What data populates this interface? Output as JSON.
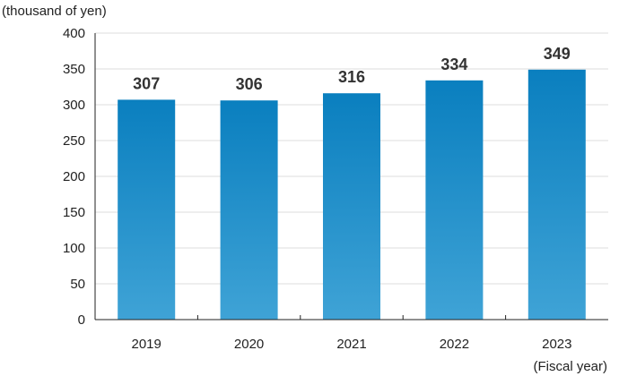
{
  "chart_data": {
    "type": "bar",
    "title": "",
    "ylabel": "(thousand of yen)",
    "xlabel": "(Fiscal year)",
    "categories": [
      "2019",
      "2020",
      "2021",
      "2022",
      "2023"
    ],
    "values": [
      307,
      306,
      316,
      334,
      349
    ],
    "ylim": [
      0,
      400
    ],
    "yticks": [
      "0",
      "50",
      "100",
      "150",
      "200",
      "250",
      "300",
      "350",
      "400"
    ],
    "grid": true,
    "data_labels": true,
    "colors": {
      "bar_top": "#0a7fbf",
      "bar_bottom": "#3fa3d6",
      "grid": "#dddddd",
      "axis": "#222222",
      "label": "#333333"
    }
  }
}
